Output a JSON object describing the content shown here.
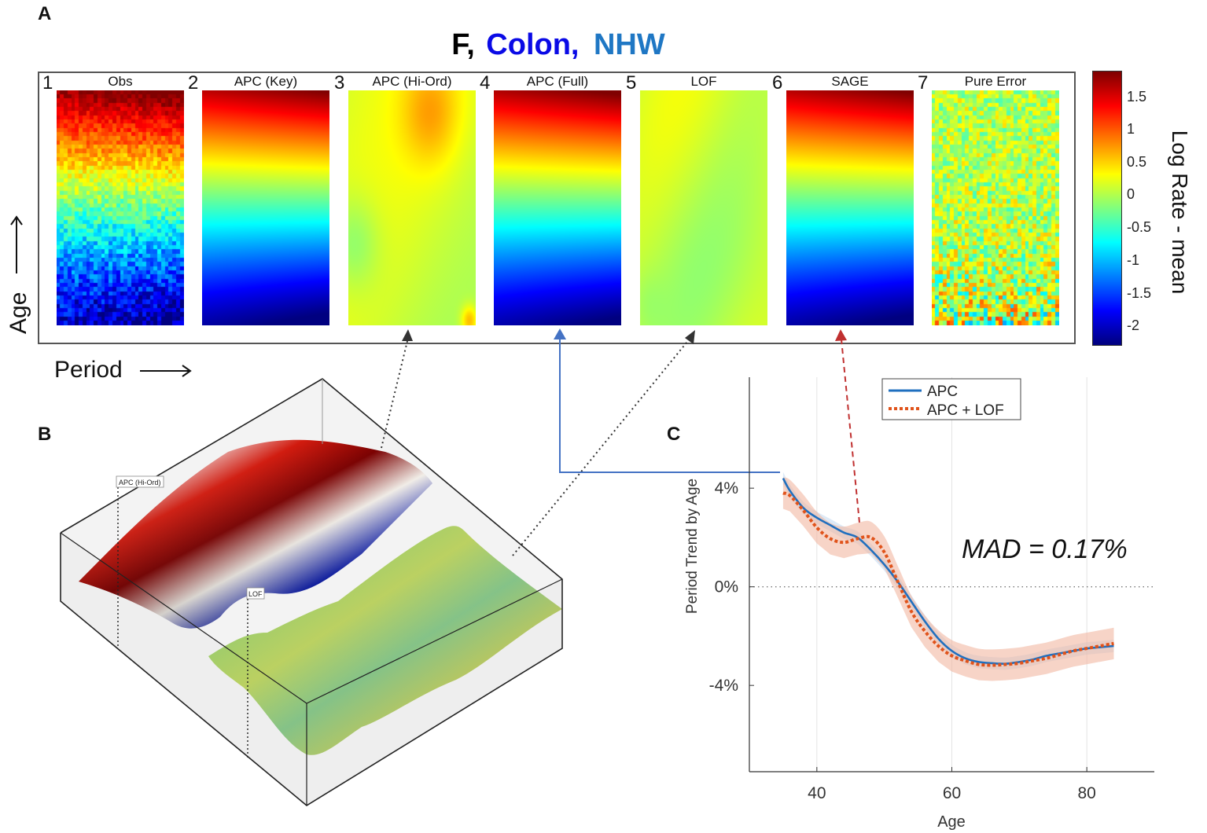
{
  "panel_labels": {
    "a": "A",
    "b": "B",
    "c": "C"
  },
  "figure_title": {
    "parts": [
      {
        "text": "F,",
        "color": "#000000"
      },
      {
        "text": "Colon,",
        "color": "#0a0ae6"
      },
      {
        "text": "NHW",
        "color": "#1f77c4"
      }
    ]
  },
  "heatmaps": [
    {
      "num": "1",
      "title": "Obs"
    },
    {
      "num": "2",
      "title": "APC (Key)"
    },
    {
      "num": "3",
      "title": "APC (Hi-Ord)"
    },
    {
      "num": "4",
      "title": "APC (Full)"
    },
    {
      "num": "5",
      "title": "LOF"
    },
    {
      "num": "6",
      "title": "SAGE"
    },
    {
      "num": "7",
      "title": "Pure Error"
    }
  ],
  "colorbar": {
    "label": "Log Rate - mean",
    "ticks": [
      "1.5",
      "1",
      "0.5",
      "0",
      "-0.5",
      "-1",
      "-1.5",
      "-2"
    ],
    "tick_values": [
      1.5,
      1,
      0.5,
      0,
      -0.5,
      -1,
      -1.5,
      -2
    ],
    "range": [
      -2.3,
      1.85
    ]
  },
  "axis_words": {
    "age": "Age",
    "period": "Period"
  },
  "surface_labels": {
    "upper": "APC (Hi-Ord)",
    "lower": "LOF"
  },
  "chart_data": {
    "type": "line",
    "title": "",
    "xlabel": "Age",
    "ylabel": "Period Trend by Age",
    "xlim": [
      30,
      90
    ],
    "ylim": [
      -7.5,
      8.5
    ],
    "xticks": [
      "40",
      "60",
      "80"
    ],
    "xtick_values": [
      40,
      60,
      80
    ],
    "yticks": [
      "4%",
      "0%",
      "-4%"
    ],
    "ytick_values": [
      4,
      0,
      -4
    ],
    "grid": true,
    "legend_position": "top-right",
    "annotation": "MAD = 0.17%",
    "series": [
      {
        "name": "APC",
        "color": "#1f6fbf",
        "style": "solid",
        "x": [
          35,
          36,
          38,
          40,
          42,
          44,
          46,
          48,
          50,
          52,
          54,
          56,
          58,
          60,
          62,
          64,
          66,
          68,
          70,
          72,
          74,
          76,
          78,
          80,
          82,
          84
        ],
        "y": [
          4.4,
          3.9,
          3.2,
          2.8,
          2.5,
          2.2,
          2.0,
          1.5,
          0.9,
          0.2,
          -0.6,
          -1.4,
          -2.1,
          -2.6,
          -2.9,
          -3.05,
          -3.1,
          -3.12,
          -3.05,
          -2.95,
          -2.8,
          -2.7,
          -2.6,
          -2.5,
          -2.45,
          -2.4
        ]
      },
      {
        "name": "APC + LOF",
        "color": "#e0531b",
        "style": "dotted",
        "x": [
          35,
          36,
          38,
          40,
          42,
          44,
          46,
          48,
          50,
          52,
          54,
          56,
          58,
          60,
          62,
          64,
          66,
          68,
          70,
          72,
          74,
          76,
          78,
          80,
          82,
          84
        ],
        "y": [
          3.8,
          3.7,
          3.1,
          2.4,
          1.95,
          1.8,
          1.95,
          2.0,
          1.4,
          0.2,
          -1.0,
          -1.8,
          -2.4,
          -2.8,
          -3.0,
          -3.15,
          -3.18,
          -3.15,
          -3.1,
          -3.0,
          -2.9,
          -2.75,
          -2.6,
          -2.5,
          -2.4,
          -2.3
        ],
        "band": 0.4
      }
    ]
  }
}
